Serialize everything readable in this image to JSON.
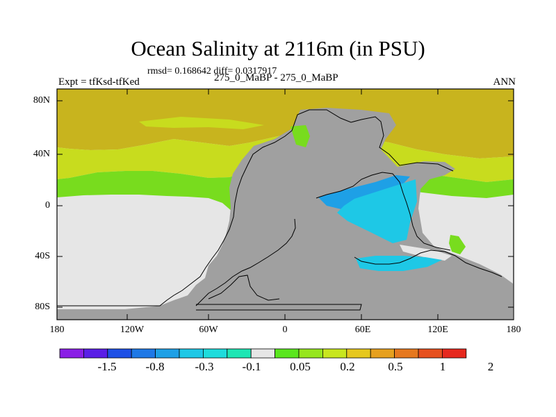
{
  "title": "Ocean Salinity at 2116m (in PSU)",
  "subtitle": {
    "stats": "rmsd= 0.168642 diff= 0.0317917",
    "experiment": "Expt = tfKsd-tfKed",
    "comparison": "275_0_MaBP - 275_0_MaBP",
    "season": "ANN"
  },
  "axes": {
    "y_ticks": [
      "80N",
      "40N",
      "0",
      "40S",
      "80S"
    ],
    "x_ticks": [
      "180",
      "120W",
      "60W",
      "0",
      "60E",
      "120E",
      "180"
    ]
  },
  "colorbar": {
    "colors": [
      "#8a1ee6",
      "#5a1ee6",
      "#1e50e6",
      "#1e78e6",
      "#1ea0e6",
      "#1ec8e6",
      "#1edcdc",
      "#1ee6b4",
      "#e6e6e6",
      "#5ae61e",
      "#96e61e",
      "#c8e61e",
      "#e6c81e",
      "#e6a01e",
      "#e6781e",
      "#e6501e",
      "#e6281e"
    ],
    "labels": [
      "-1.5",
      "-0.8",
      "-0.3",
      "-0.1",
      "0.05",
      "0.2",
      "0.5",
      "1",
      "2"
    ]
  },
  "map_colors": {
    "land": "#a0a0a0",
    "near_zero": "#e6e6e6",
    "north_gold": "#c8b41e",
    "lime": "#c8dc1e",
    "green": "#78dc1e",
    "blue": "#1ea0e6",
    "cyan": "#1ec8e6"
  }
}
